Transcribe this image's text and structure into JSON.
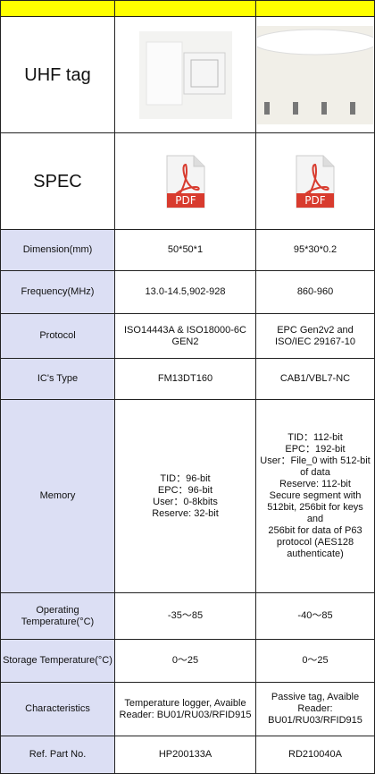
{
  "table": {
    "rows": [
      {
        "label": "UHF tag"
      },
      {
        "label": "SPEC"
      },
      {
        "label": "Dimension(mm)",
        "values": [
          "50*50*1",
          "95*30*0.2"
        ]
      },
      {
        "label": "Frequency(MHz)",
        "values": [
          "13.0-14.5,902-928",
          "860-960"
        ]
      },
      {
        "label": "Protocol",
        "values": [
          "ISO14443A & ISO18000-6C GEN2",
          "EPC Gen2v2 and ISO/IEC 29167-10"
        ]
      },
      {
        "label": "IC's Type",
        "values": [
          "FM13DT160",
          "CAB1/VBL7-NC"
        ]
      },
      {
        "label": "Memory",
        "values": [
          [
            "TID：96-bit",
            "EPC：96-bit",
            "User：0-8kbits",
            "Reserve: 32-bit"
          ],
          [
            "TID：112-bit",
            "EPC：192-bit",
            "User：File_0 with 512-bit of data",
            "Reserve: 112-bit",
            "Secure segment with 512bit, 256bit for keys and",
            "256bit for data of P63 protocol (AES128 authenticate)"
          ]
        ]
      },
      {
        "label": "Operating Temperature(°C)",
        "values": [
          "-35～85",
          "-40～85"
        ]
      },
      {
        "label": "Storage Temperature(°C)",
        "values": [
          "0～25",
          "0～25"
        ]
      },
      {
        "label": "Characteristics",
        "values": [
          "Temperature logger, Avaible Reader: BU01/RU03/RFID915",
          "Passive tag, Avaible Reader: BU01/RU03/RFID915"
        ]
      },
      {
        "label": "Ref. Part No.",
        "values": [
          "HP200133A",
          "RD210040A"
        ]
      }
    ]
  }
}
